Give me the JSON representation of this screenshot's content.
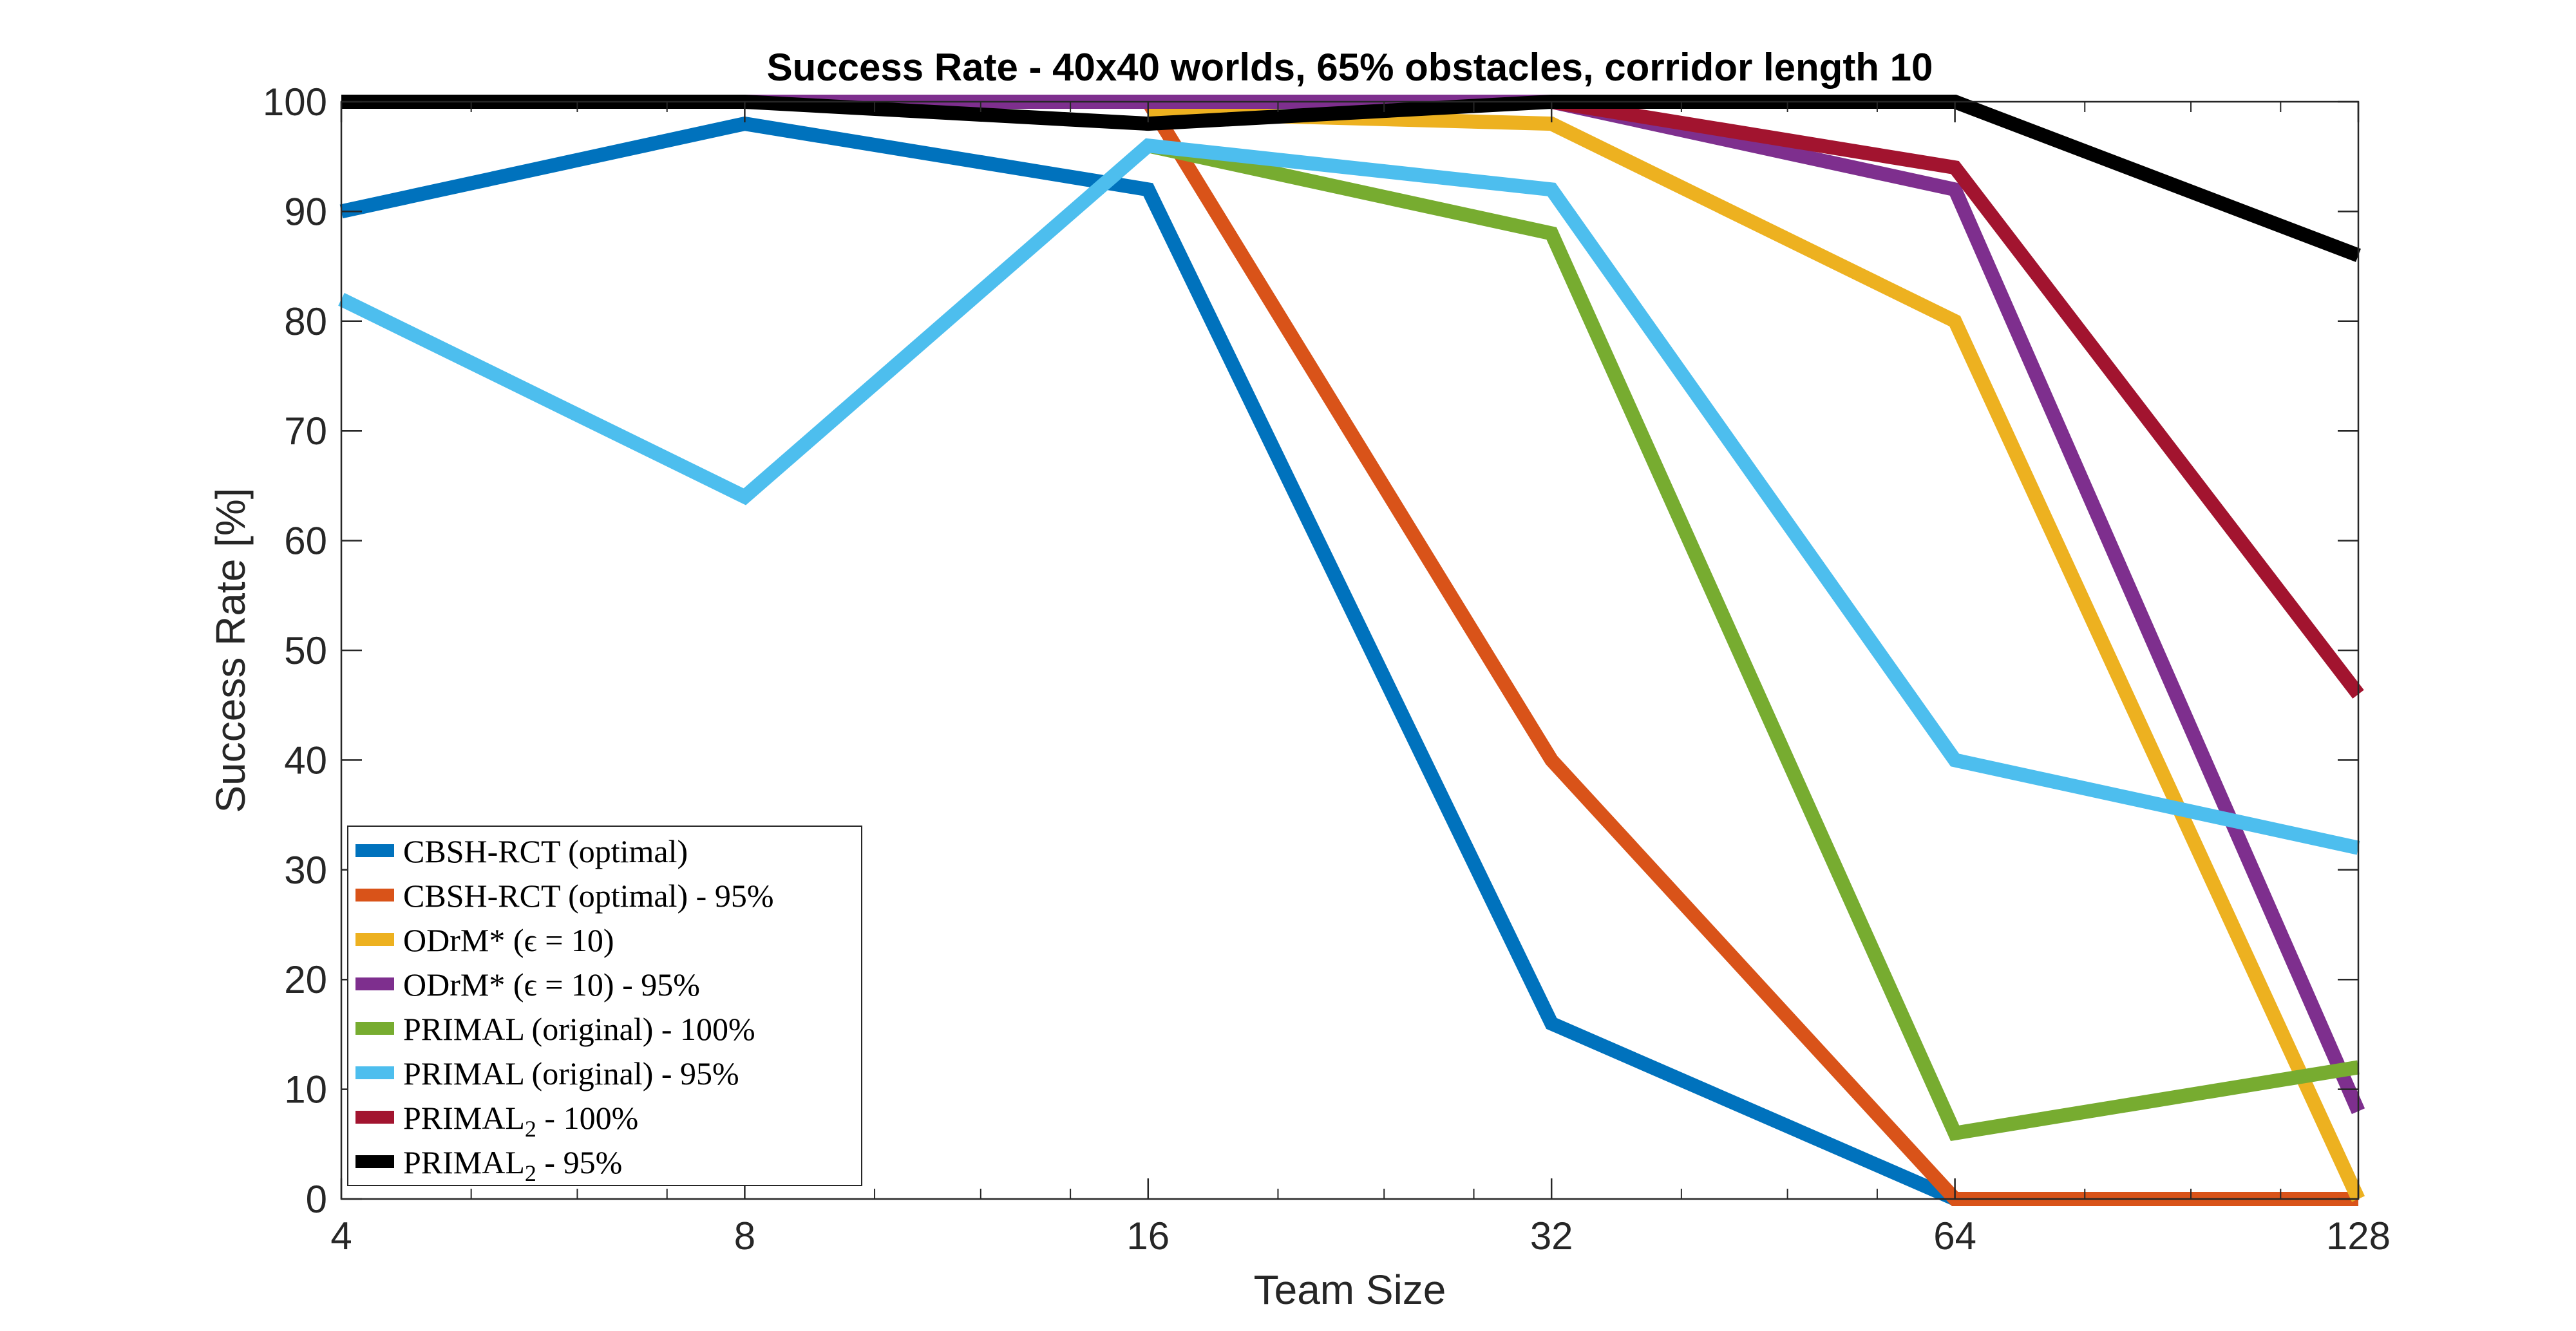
{
  "chart_data": {
    "type": "line",
    "title": "Success Rate - 40x40 worlds, 65% obstacles, corridor length 10",
    "xlabel": "Team Size",
    "ylabel": "Success Rate [%]",
    "x_scale": "log2",
    "x": [
      4,
      8,
      16,
      32,
      64,
      128
    ],
    "x_tick_labels": [
      "4",
      "8",
      "16",
      "32",
      "64",
      "128"
    ],
    "xlim": [
      4,
      128
    ],
    "ylim": [
      0,
      100
    ],
    "y_ticks": [
      0,
      10,
      20,
      30,
      40,
      50,
      60,
      70,
      80,
      90,
      100
    ],
    "grid": false,
    "legend_position": "bottom-left",
    "series": [
      {
        "name": "CBSH-RCT (optimal)",
        "name_sub": "",
        "name_rest": "",
        "color": "#0072BD",
        "x": [
          4,
          8,
          16,
          32,
          64
        ],
        "values": [
          90,
          98,
          92,
          16,
          0
        ]
      },
      {
        "name": "CBSH-RCT (optimal) - 95%",
        "name_sub": "",
        "name_rest": "",
        "color": "#D95319",
        "x": [
          16,
          32,
          64,
          128
        ],
        "values": [
          100,
          40,
          0,
          0
        ]
      },
      {
        "name": "ODrM* (ϵ = 10)",
        "name_sub": "",
        "name_rest": "",
        "color": "#EDB120",
        "x": [
          16,
          32,
          64,
          128
        ],
        "values": [
          99,
          98,
          80,
          0
        ]
      },
      {
        "name": "ODrM* (ϵ = 10) - 95%",
        "name_sub": "",
        "name_rest": "",
        "color": "#7E2F8E",
        "x": [
          4,
          8,
          16,
          32,
          64,
          128
        ],
        "values": [
          100,
          100,
          100,
          100,
          92,
          8
        ]
      },
      {
        "name": "PRIMAL (original) - 100%",
        "name_sub": "",
        "name_rest": "",
        "color": "#77AC30",
        "x": [
          16,
          32,
          64,
          128
        ],
        "values": [
          96,
          88,
          6,
          12
        ]
      },
      {
        "name": "PRIMAL (original) - 95%",
        "name_sub": "",
        "name_rest": "",
        "color": "#4DBEEE",
        "x": [
          4,
          8,
          16,
          32,
          64,
          128
        ],
        "values": [
          82,
          64,
          96,
          92,
          40,
          32
        ]
      },
      {
        "name": "PRIMAL",
        "name_sub": "2",
        "name_rest": " - 100%",
        "color": "#A2142F",
        "x": [
          32,
          64,
          128
        ],
        "values": [
          100,
          94,
          46
        ]
      },
      {
        "name": "PRIMAL",
        "name_sub": "2",
        "name_rest": " - 95%",
        "color": "#000000",
        "x": [
          4,
          8,
          16,
          32,
          64,
          128
        ],
        "values": [
          100,
          100,
          98,
          100,
          100,
          86
        ]
      }
    ]
  }
}
